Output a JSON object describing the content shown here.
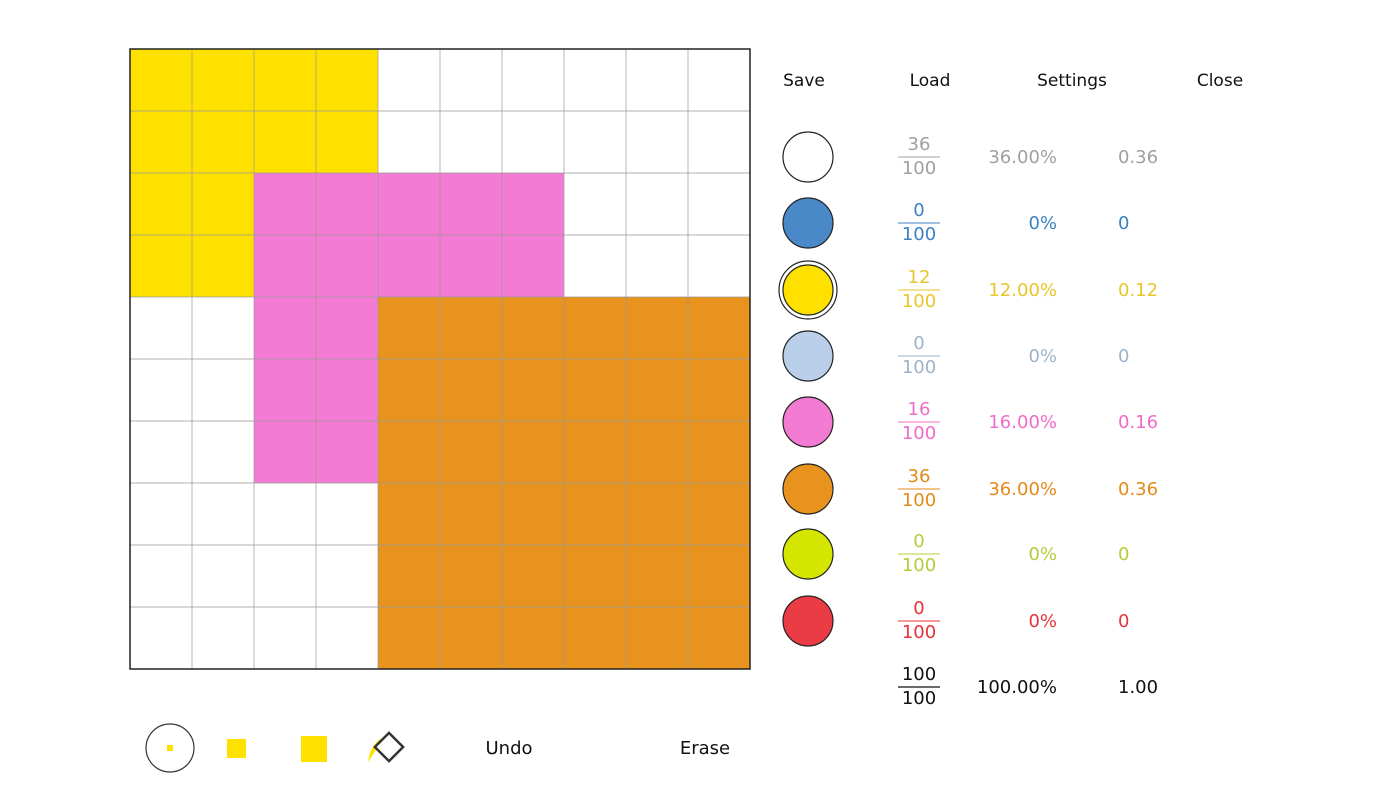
{
  "menu": [
    "Save",
    "Load",
    "Settings",
    "Close"
  ],
  "rows": [
    {
      "color": "#ffffff",
      "text_color": "#a0a0a0",
      "numerator": 36,
      "denominator": 100,
      "percent": "36.00%",
      "decimal": 0.36
    },
    {
      "color": "#4a89c8",
      "text_color": "#3b82c4",
      "numerator": 0,
      "denominator": 100,
      "percent": "0%",
      "decimal": 0
    },
    {
      "color": "#ffe100",
      "text_color": "#e8c62a",
      "numerator": 12,
      "denominator": 100,
      "percent": "12.00%",
      "decimal": 0.12
    },
    {
      "color": "#bad0ea",
      "text_color": "#9fb3c8",
      "numerator": 0,
      "denominator": 100,
      "percent": "0%",
      "decimal": 0
    },
    {
      "color": "#f47bd3",
      "text_color": "#f06cc8",
      "numerator": 16,
      "denominator": 100,
      "percent": "16.00%",
      "decimal": 0.16
    },
    {
      "color": "#e9931f",
      "text_color": "#e38a1a",
      "numerator": 36,
      "denominator": 100,
      "percent": "36.00%",
      "decimal": 0.36
    },
    {
      "color": "#d4e600",
      "text_color": "#b4cc3a",
      "numerator": 0,
      "denominator": 100,
      "percent": "0%",
      "decimal": 0
    },
    {
      "color": "#eb3c46",
      "text_color": "#e8323c",
      "numerator": 0,
      "denominator": 100,
      "percent": "0%",
      "decimal": 0
    }
  ],
  "total": {
    "numerator": 100,
    "denominator": 100,
    "percent": "100.00%",
    "decimal": "1.00"
  },
  "tools": {
    "undo": "Undo",
    "erase": "Erase"
  }
}
